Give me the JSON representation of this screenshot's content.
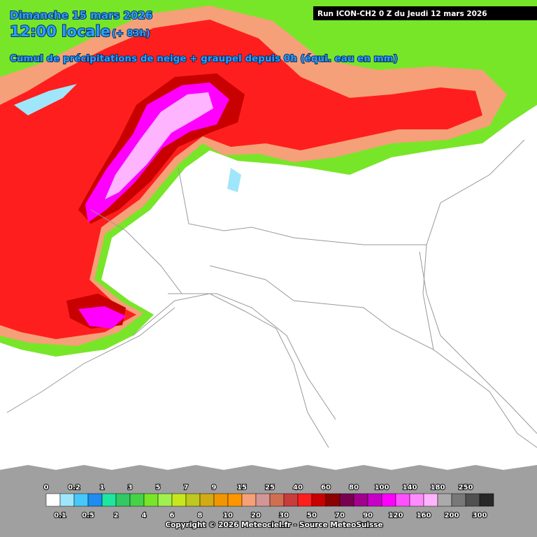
{
  "header": {
    "date": "Dimanche 15 mars 2026",
    "time": "12:00 locale",
    "lead": "(+ 83h)",
    "subtitle": "Cumul de précipitations de neige + graupel depuis 0h (équi. eau en mm)",
    "run": "Run ICON-CH2 0 Z du Jeudi 12 mars 2026"
  },
  "legend": {
    "thresholds": [
      0,
      0.1,
      0.2,
      0.5,
      1,
      2,
      3,
      4,
      5,
      6,
      7,
      8,
      9,
      10,
      15,
      20,
      25,
      30,
      40,
      50,
      60,
      70,
      80,
      90,
      100,
      120,
      140,
      160,
      180,
      200,
      250,
      300
    ],
    "colors": [
      "#ffffff",
      "#a0e6fa",
      "#46c8fa",
      "#1e8cf0",
      "#1ee6a0",
      "#32c864",
      "#46d246",
      "#78e628",
      "#a0f050",
      "#c8e61e",
      "#bec81e",
      "#d2aa14",
      "#f09600",
      "#ff9600",
      "#f5a078",
      "#d29696",
      "#d26e50",
      "#c83c3c",
      "#ff1e1e",
      "#c80000",
      "#8c0000",
      "#780050",
      "#a0008c",
      "#c800c8",
      "#ff00ff",
      "#ff50ff",
      "#ff8cff",
      "#ffb4ff",
      "#aaaaaa",
      "#787878",
      "#505050",
      "#282828"
    ]
  },
  "footer": {
    "copyright": "Copyright © 2026 Meteociel.fr - Source MeteoSuisse"
  }
}
